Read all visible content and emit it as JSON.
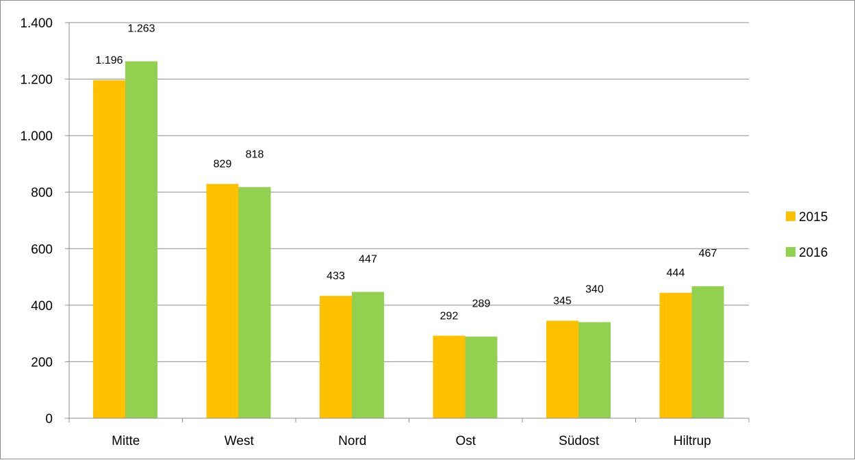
{
  "chart_data": {
    "type": "bar",
    "title": "",
    "xlabel": "",
    "ylabel": "",
    "categories": [
      "Mitte",
      "West",
      "Nord",
      "Ost",
      "Südost",
      "Hiltrup"
    ],
    "series": [
      {
        "name": "2015",
        "color": "#FFC000",
        "values": [
          1196,
          829,
          433,
          292,
          345,
          444
        ],
        "labels": [
          "1.196",
          "829",
          "433",
          "292",
          "345",
          "444"
        ]
      },
      {
        "name": "2016",
        "color": "#92D050",
        "values": [
          1263,
          818,
          447,
          289,
          340,
          467
        ],
        "labels": [
          "1.263",
          "818",
          "447",
          "289",
          "340",
          "467"
        ]
      }
    ],
    "ylim": [
      0,
      1400
    ],
    "yticks": [
      0,
      200,
      400,
      600,
      800,
      1000,
      1200,
      1400
    ],
    "ytick_labels": [
      "0",
      "200",
      "400",
      "600",
      "800",
      "1.000",
      "1.200",
      "1.400"
    ],
    "grid": true,
    "legend_position": "right"
  }
}
